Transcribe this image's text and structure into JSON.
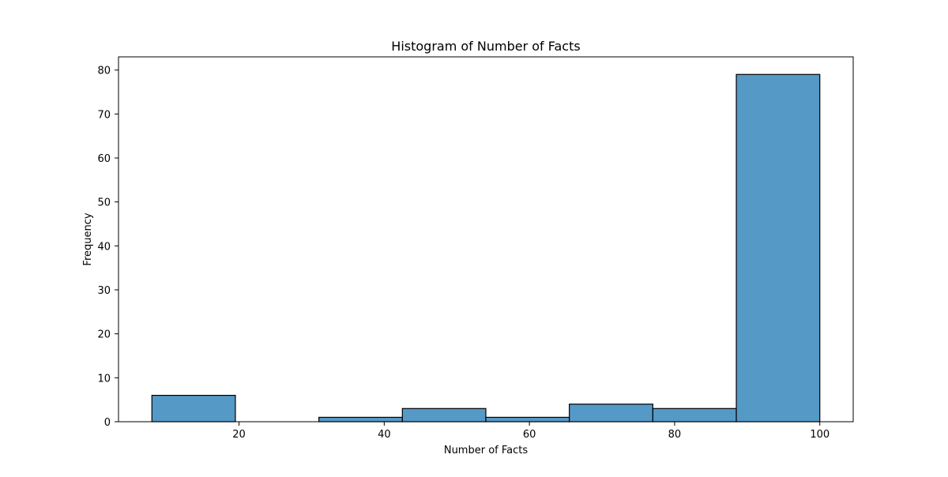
{
  "chart_data": {
    "type": "bar",
    "title": "Histogram of Number of Facts",
    "xlabel": "Number of Facts",
    "ylabel": "Frequency",
    "xlim": [
      3.4,
      104.6
    ],
    "ylim": [
      0,
      83
    ],
    "bins": [
      {
        "x0": 8.0,
        "x1": 19.5,
        "count": 6
      },
      {
        "x0": 19.5,
        "x1": 31.0,
        "count": 0
      },
      {
        "x0": 31.0,
        "x1": 42.5,
        "count": 1
      },
      {
        "x0": 42.5,
        "x1": 54.0,
        "count": 3
      },
      {
        "x0": 54.0,
        "x1": 65.5,
        "count": 1
      },
      {
        "x0": 65.5,
        "x1": 77.0,
        "count": 4
      },
      {
        "x0": 77.0,
        "x1": 88.5,
        "count": 3
      },
      {
        "x0": 88.5,
        "x1": 100.0,
        "count": 79
      }
    ],
    "xticks": [
      20,
      40,
      60,
      80,
      100
    ],
    "yticks": [
      0,
      10,
      20,
      30,
      40,
      50,
      60,
      70,
      80
    ],
    "bar_color": "#5599c7",
    "edge_color": "#000000",
    "grid": false,
    "legend": "none"
  }
}
